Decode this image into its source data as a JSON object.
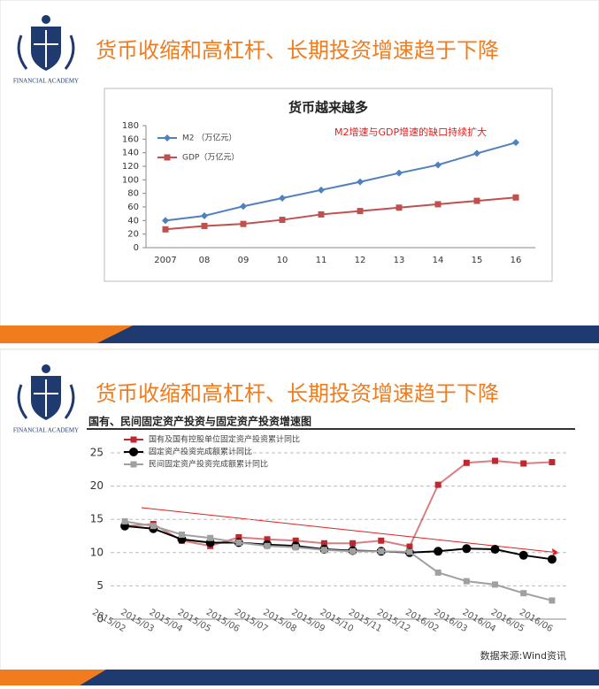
{
  "slides": [
    {
      "title": "货币收缩和高杠杆、长期投资增速趋于下降",
      "logo_text": "FINANCIAL ACADEMY"
    },
    {
      "title": "货币收缩和高杠杆、长期投资增速趋于下降",
      "logo_text": "FINANCIAL ACADEMY"
    }
  ],
  "source": "数据来源:Wind资讯",
  "chart_data": [
    {
      "type": "line",
      "title": "货币越来越多",
      "annotation": "M2增速与GDP增速的缺口持续扩大",
      "categories": [
        "2007",
        "08",
        "09",
        "10",
        "11",
        "12",
        "13",
        "14",
        "15",
        "16"
      ],
      "series": [
        {
          "name": "M2 （万亿元）",
          "color": "#4f81bd",
          "marker": "diamond",
          "values": [
            40,
            47,
            61,
            73,
            85,
            97,
            110,
            122,
            139,
            155
          ]
        },
        {
          "name": "GDP（万亿元）",
          "color": "#c0504d",
          "marker": "square",
          "values": [
            27,
            32,
            35,
            41,
            49,
            54,
            59,
            64,
            69,
            74
          ]
        }
      ],
      "ylim": [
        0,
        180
      ],
      "yticks": [
        0,
        20,
        40,
        60,
        80,
        100,
        120,
        140,
        160,
        180
      ],
      "grid": false
    },
    {
      "type": "line",
      "title": "国有、民间固定资产投资与固定资产投资增速图",
      "categories": [
        "2015/02",
        "2015/03",
        "2015/04",
        "2015/05",
        "2015/06",
        "2015/07",
        "2015/08",
        "2015/09",
        "2015/10",
        "2015/11",
        "2015/12",
        "2016/02",
        "2016/03",
        "2016/04",
        "2016/05",
        "2016/06"
      ],
      "series": [
        {
          "name": "国有及国有控股单位固定资产投资累计同比",
          "color": "#c0282f",
          "marker": "square",
          "values": [
            14,
            14.3,
            11.8,
            11,
            12.3,
            12,
            11.8,
            11.4,
            11.4,
            11.8,
            10.9,
            20.2,
            23.5,
            23.8,
            23.4,
            23.6
          ]
        },
        {
          "name": "固定资产投资完成额累计同比",
          "color": "#000000",
          "marker": "circle",
          "values": [
            14,
            13.6,
            12,
            11.5,
            11.5,
            11.2,
            11,
            10.5,
            10.3,
            10.2,
            10,
            10.2,
            10.6,
            10.5,
            9.6,
            9
          ]
        },
        {
          "name": "民间固定资产投资完成额累计同比",
          "color": "#a0a0a0",
          "marker": "square",
          "values": [
            14.7,
            14,
            12.7,
            12.2,
            11.5,
            11,
            10.8,
            10.4,
            10.2,
            10.2,
            10.1,
            7,
            5.7,
            5.2,
            3.9,
            2.8
          ]
        }
      ],
      "ylim": [
        0,
        25
      ],
      "yticks": [
        0,
        5,
        10,
        15,
        20,
        25
      ],
      "grid": true
    }
  ]
}
